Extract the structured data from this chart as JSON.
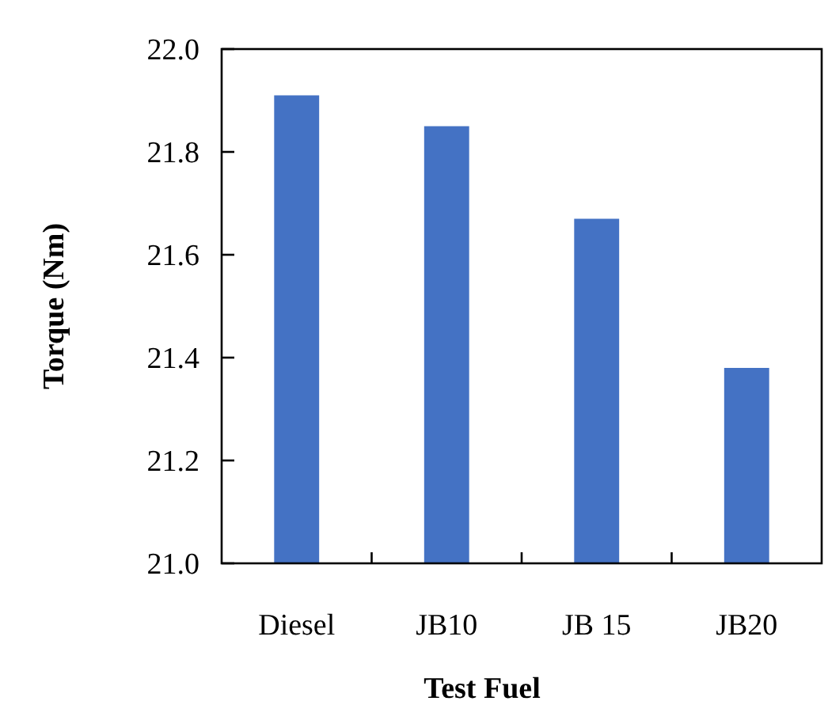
{
  "chart_data": {
    "type": "bar",
    "xlabel": "Test Fuel",
    "ylabel": "Torque (Nm)",
    "categories": [
      "Diesel",
      "JB10",
      "JB 15",
      "JB20"
    ],
    "values": [
      21.91,
      21.85,
      21.67,
      21.38
    ],
    "color": "#4472c4",
    "ylim": [
      21.0,
      22.0
    ],
    "yticks": [
      {
        "value": 21,
        "label": "21.0"
      },
      {
        "value": 21.2,
        "label": "21.2"
      },
      {
        "value": 21.4,
        "label": "21.4"
      },
      {
        "value": 21.6,
        "label": "21.6"
      },
      {
        "value": 21.8,
        "label": "21.8"
      },
      {
        "value": 22,
        "label": "22.0"
      }
    ],
    "grid": false
  }
}
